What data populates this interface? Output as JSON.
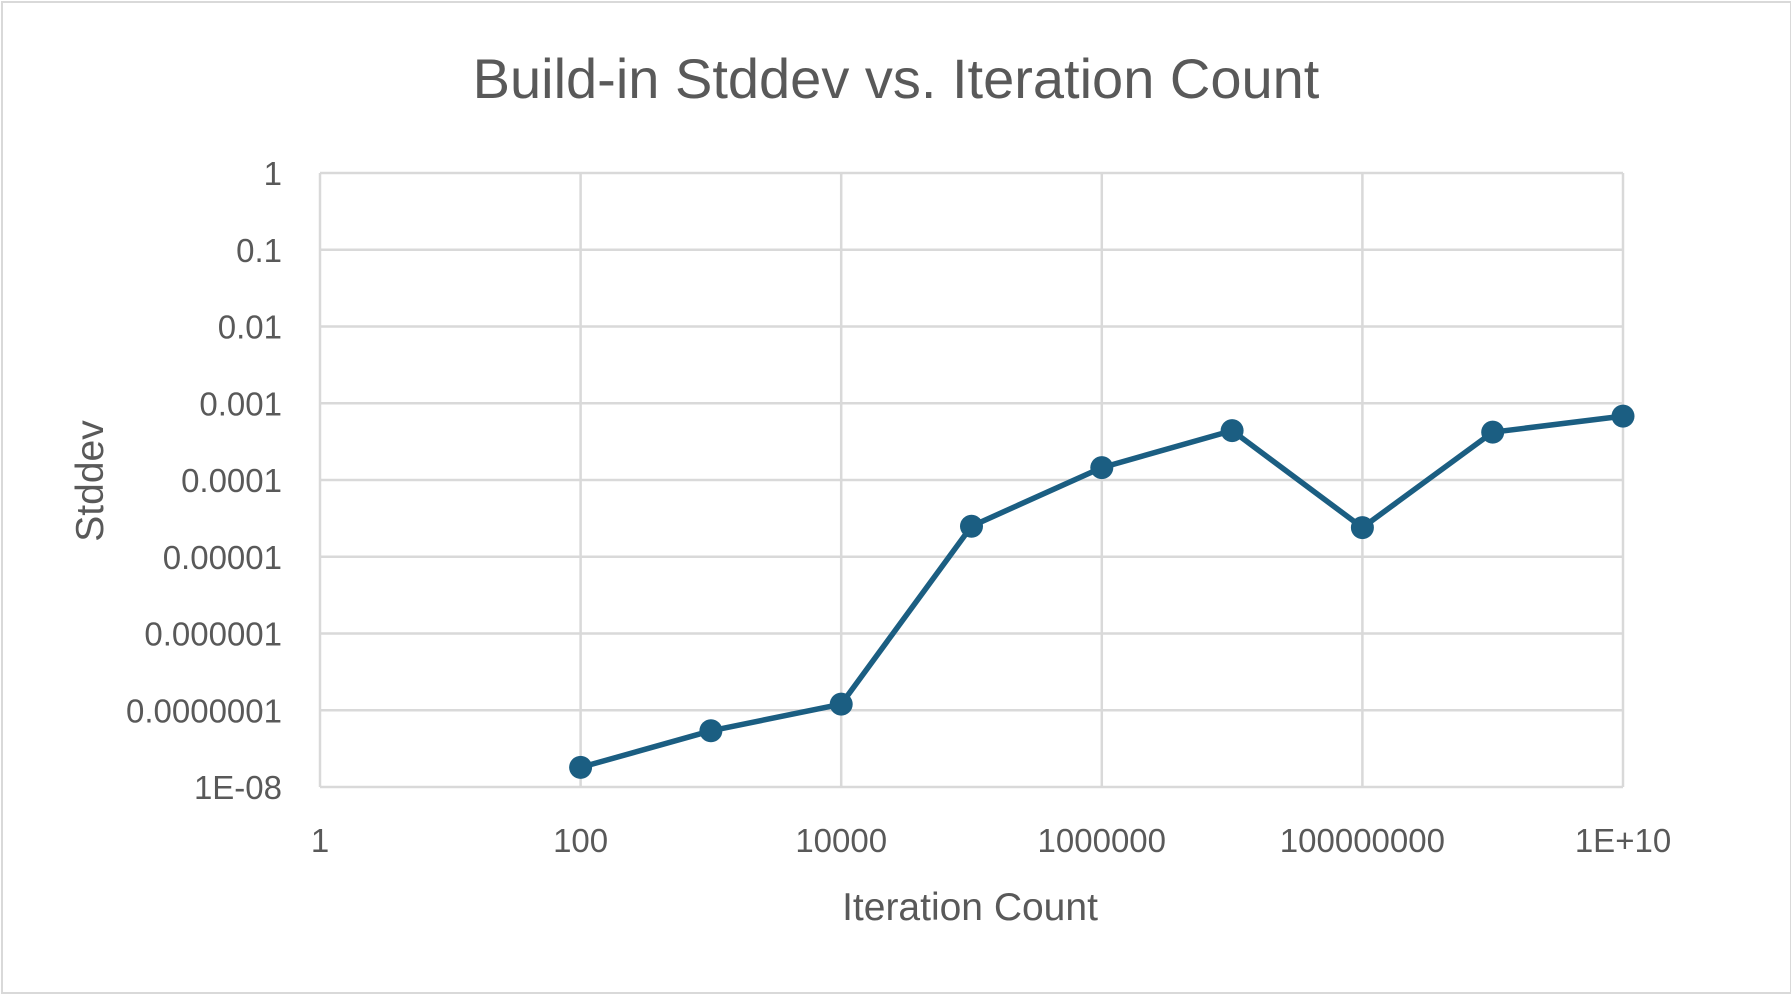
{
  "chart_data": {
    "type": "scatter",
    "title": "Build-in Stddev vs. Iteration Count",
    "xlabel": "Iteration Count",
    "ylabel": "Stddev",
    "x_scale": "log",
    "y_scale": "log",
    "xlim": [
      1,
      10000000000
    ],
    "ylim": [
      1e-08,
      1
    ],
    "grid": true,
    "legend": "none",
    "x_tick_labels": [
      "1",
      "100",
      "10000",
      "1000000",
      "100000000",
      "1E+10"
    ],
    "y_tick_labels": [
      "1",
      "0.1",
      "0.01",
      "0.001",
      "0.0001",
      "0.00001",
      "0.000001",
      "0.0000001",
      "1E-08"
    ],
    "series": [
      {
        "color": "#1b5e82",
        "marker": "circle",
        "line": "solid",
        "x": [
          100,
          1000,
          10000,
          100000,
          1000000,
          10000000,
          100000000,
          1000000000,
          10000000000
        ],
        "y": [
          1.8e-08,
          5.4e-08,
          1.2e-07,
          2.5e-05,
          0.000145,
          0.00044,
          2.4e-05,
          0.00042,
          0.00068
        ]
      }
    ]
  }
}
